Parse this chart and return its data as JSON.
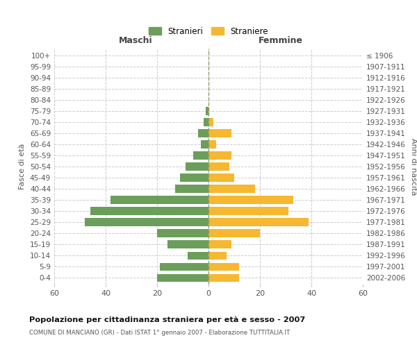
{
  "age_groups": [
    "0-4",
    "5-9",
    "10-14",
    "15-19",
    "20-24",
    "25-29",
    "30-34",
    "35-39",
    "40-44",
    "45-49",
    "50-54",
    "55-59",
    "60-64",
    "65-69",
    "70-74",
    "75-79",
    "80-84",
    "85-89",
    "90-94",
    "95-99",
    "100+"
  ],
  "birth_years": [
    "2002-2006",
    "1997-2001",
    "1992-1996",
    "1987-1991",
    "1982-1986",
    "1977-1981",
    "1972-1976",
    "1967-1971",
    "1962-1966",
    "1957-1961",
    "1952-1956",
    "1947-1951",
    "1942-1946",
    "1937-1941",
    "1932-1936",
    "1927-1931",
    "1922-1926",
    "1917-1921",
    "1912-1916",
    "1907-1911",
    "≤ 1906"
  ],
  "males": [
    20,
    19,
    8,
    16,
    20,
    48,
    46,
    38,
    13,
    11,
    9,
    6,
    3,
    4,
    2,
    1,
    0,
    0,
    0,
    0,
    0
  ],
  "females": [
    12,
    12,
    7,
    9,
    20,
    39,
    31,
    33,
    18,
    10,
    8,
    9,
    3,
    9,
    2,
    0,
    0,
    0,
    0,
    0,
    0
  ],
  "male_color": "#6a9e5a",
  "female_color": "#f5b830",
  "background_color": "#ffffff",
  "grid_color": "#cccccc",
  "title": "Popolazione per cittadinanza straniera per età e sesso - 2007",
  "subtitle": "COMUNE DI MANCIANO (GR) - Dati ISTAT 1° gennaio 2007 - Elaborazione TUTTITALIA.IT",
  "xlabel_left": "Maschi",
  "xlabel_right": "Femmine",
  "ylabel_left": "Fasce di età",
  "ylabel_right": "Anni di nascita",
  "xlim": 60,
  "legend_males": "Stranieri",
  "legend_females": "Straniere"
}
